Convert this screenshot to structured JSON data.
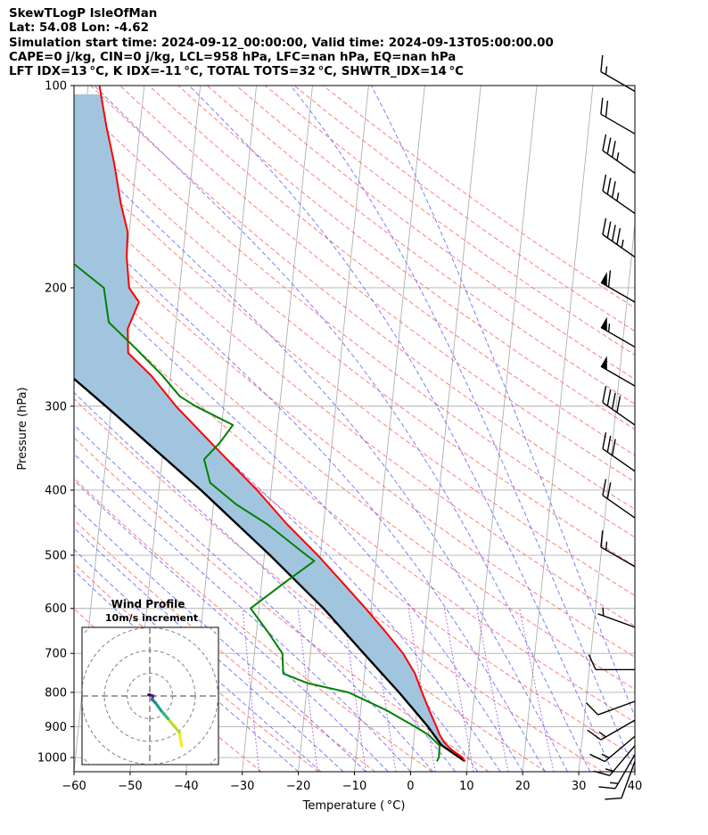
{
  "header": {
    "line1": "SkewTLogP IsleOfMan",
    "line2": "Lat: 54.08   Lon: -4.62",
    "line3": "Simulation start time: 2024-09-12_00:00:00, Valid time: 2024-09-13T05:00:00.00",
    "line4": "CAPE=0 j/kg, CIN=0 j/kg, LCL=958 hPa, LFC=nan hPa, EQ=nan hPa",
    "line5": "LFT IDX=13 °C, K IDX=-11 °C, TOTAL TOTS=32 °C, SHWTR_IDX=14 °C"
  },
  "chart_data": [
    {
      "type": "line",
      "subtype": "skew-T log-P diagram",
      "xlabel": "Temperature ( °C)",
      "ylabel": "Pressure (hPa)",
      "xlim": [
        -60,
        40
      ],
      "ylim": [
        1050,
        100
      ],
      "y_scale": "log",
      "x_ticks": [
        -60,
        -50,
        -40,
        -30,
        -20,
        -10,
        0,
        10,
        20,
        30,
        40
      ],
      "y_ticks": [
        1000,
        900,
        800,
        700,
        600,
        500,
        400,
        300,
        200,
        100
      ],
      "grid": true,
      "colors": {
        "temperature": "#ff0000",
        "dewpoint": "#008000",
        "parcel": "#000000",
        "shading": "#a2c5df",
        "dry_adiabats": "#ff6666",
        "moist_adiabats": "#6666ff",
        "mixing_ratio": "#9933cc",
        "isotherms": "#b0b0b0"
      },
      "series": [
        {
          "role": "temperature",
          "values": [
            {
              "p": 1013,
              "t": 9.5
            },
            {
              "p": 1000,
              "t": 9.0
            },
            {
              "p": 975,
              "t": 7.0
            },
            {
              "p": 950,
              "t": 5.5
            },
            {
              "p": 925,
              "t": 4.5
            },
            {
              "p": 900,
              "t": 3.8
            },
            {
              "p": 850,
              "t": 2.2
            },
            {
              "p": 800,
              "t": 0.6
            },
            {
              "p": 750,
              "t": -1.0
            },
            {
              "p": 700,
              "t": -3.5
            },
            {
              "p": 650,
              "t": -7.0
            },
            {
              "p": 600,
              "t": -11.0
            },
            {
              "p": 550,
              "t": -15.5
            },
            {
              "p": 500,
              "t": -20.5
            },
            {
              "p": 450,
              "t": -26.5
            },
            {
              "p": 400,
              "t": -32.5
            },
            {
              "p": 350,
              "t": -40.0
            },
            {
              "p": 300,
              "t": -48.5
            },
            {
              "p": 270,
              "t": -53.5
            },
            {
              "p": 250,
              "t": -58.0
            },
            {
              "p": 230,
              "t": -58.5
            },
            {
              "p": 210,
              "t": -57.0
            },
            {
              "p": 200,
              "t": -59.0
            },
            {
              "p": 180,
              "t": -60.0
            },
            {
              "p": 165,
              "t": -60.3
            },
            {
              "p": 150,
              "t": -62.0
            },
            {
              "p": 130,
              "t": -64.0
            },
            {
              "p": 115,
              "t": -66.0
            },
            {
              "p": 100,
              "t": -68.0
            }
          ]
        },
        {
          "role": "dewpoint",
          "values": [
            {
              "p": 1013,
              "t": 4.5
            },
            {
              "p": 1000,
              "t": 4.8
            },
            {
              "p": 960,
              "t": 4.7
            },
            {
              "p": 925,
              "t": 2.5
            },
            {
              "p": 900,
              "t": 0.0
            },
            {
              "p": 850,
              "t": -5.5
            },
            {
              "p": 800,
              "t": -12.5
            },
            {
              "p": 775,
              "t": -20.0
            },
            {
              "p": 750,
              "t": -24.5
            },
            {
              "p": 700,
              "t": -25.0
            },
            {
              "p": 650,
              "t": -28.0
            },
            {
              "p": 600,
              "t": -31.5
            },
            {
              "p": 550,
              "t": -26.0
            },
            {
              "p": 510,
              "t": -21.0
            },
            {
              "p": 500,
              "t": -22.5
            },
            {
              "p": 450,
              "t": -30.0
            },
            {
              "p": 420,
              "t": -36.0
            },
            {
              "p": 390,
              "t": -41.0
            },
            {
              "p": 360,
              "t": -42.5
            },
            {
              "p": 340,
              "t": -40.0
            },
            {
              "p": 320,
              "t": -38.0
            },
            {
              "p": 300,
              "t": -45.0
            },
            {
              "p": 290,
              "t": -48.0
            },
            {
              "p": 270,
              "t": -51.5
            },
            {
              "p": 245,
              "t": -57.0
            },
            {
              "p": 225,
              "t": -62.0
            },
            {
              "p": 200,
              "t": -63.5
            },
            {
              "p": 185,
              "t": -69.0
            },
            {
              "p": 170,
              "t": -77.0
            },
            {
              "p": 160,
              "t": -78.5
            },
            {
              "p": 148,
              "t": -79.0
            },
            {
              "p": 135,
              "t": -80.5
            },
            {
              "p": 118,
              "t": -80.0
            },
            {
              "p": 100,
              "t": -79.0
            }
          ]
        },
        {
          "role": "parcel",
          "values": [
            {
              "p": 1013,
              "t": 9.5
            },
            {
              "p": 958,
              "t": 5.0
            },
            {
              "p": 900,
              "t": 2.3
            },
            {
              "p": 850,
              "t": -0.5
            },
            {
              "p": 800,
              "t": -3.5
            },
            {
              "p": 700,
              "t": -10.5
            },
            {
              "p": 600,
              "t": -18.5
            },
            {
              "p": 500,
              "t": -29.0
            },
            {
              "p": 400,
              "t": -42.5
            },
            {
              "p": 300,
              "t": -61.0
            },
            {
              "p": 250,
              "t": -73.0
            },
            {
              "p": 200,
              "t": -87.0
            },
            {
              "p": 150,
              "t": -105.0
            },
            {
              "p": 100,
              "t": -130.0
            }
          ]
        }
      ]
    },
    {
      "type": "line",
      "subtype": "wind hodograph",
      "title": "Wind Profile",
      "subtitle": "10m/s increment",
      "rings": 3,
      "series": [
        {
          "role": "hodograph",
          "values": [
            {
              "u": 14.0,
              "v": -22.0
            },
            {
              "u": 13.0,
              "v": -16.0
            },
            {
              "u": 8.0,
              "v": -10.0
            },
            {
              "u": 5.0,
              "v": -6.5
            },
            {
              "u": 2.5,
              "v": -3.0
            },
            {
              "u": 1.0,
              "v": -1.5
            },
            {
              "u": 1.5,
              "v": 0.0
            },
            {
              "u": 0.0,
              "v": 0.5
            },
            {
              "u": -0.5,
              "v": 0.5
            }
          ]
        }
      ]
    },
    {
      "type": "scatter",
      "subtype": "wind barbs",
      "values": [
        {
          "p": 1013,
          "speed_kt": 10,
          "dir": 200
        },
        {
          "p": 990,
          "speed_kt": 15,
          "dir": 210
        },
        {
          "p": 960,
          "speed_kt": 15,
          "dir": 220
        },
        {
          "p": 930,
          "speed_kt": 15,
          "dir": 230
        },
        {
          "p": 880,
          "speed_kt": 15,
          "dir": 240
        },
        {
          "p": 825,
          "speed_kt": 10,
          "dir": 250
        },
        {
          "p": 740,
          "speed_kt": 10,
          "dir": 270
        },
        {
          "p": 640,
          "speed_kt": 5,
          "dir": 290
        },
        {
          "p": 520,
          "speed_kt": 15,
          "dir": 300
        },
        {
          "p": 440,
          "speed_kt": 20,
          "dir": 305
        },
        {
          "p": 375,
          "speed_kt": 30,
          "dir": 305
        },
        {
          "p": 320,
          "speed_kt": 40,
          "dir": 305
        },
        {
          "p": 280,
          "speed_kt": 50,
          "dir": 300
        },
        {
          "p": 245,
          "speed_kt": 55,
          "dir": 300
        },
        {
          "p": 210,
          "speed_kt": 60,
          "dir": 300
        },
        {
          "p": 180,
          "speed_kt": 45,
          "dir": 305
        },
        {
          "p": 155,
          "speed_kt": 35,
          "dir": 305
        },
        {
          "p": 135,
          "speed_kt": 35,
          "dir": 305
        },
        {
          "p": 118,
          "speed_kt": 20,
          "dir": 300
        },
        {
          "p": 102,
          "speed_kt": 15,
          "dir": 300
        }
      ]
    }
  ]
}
